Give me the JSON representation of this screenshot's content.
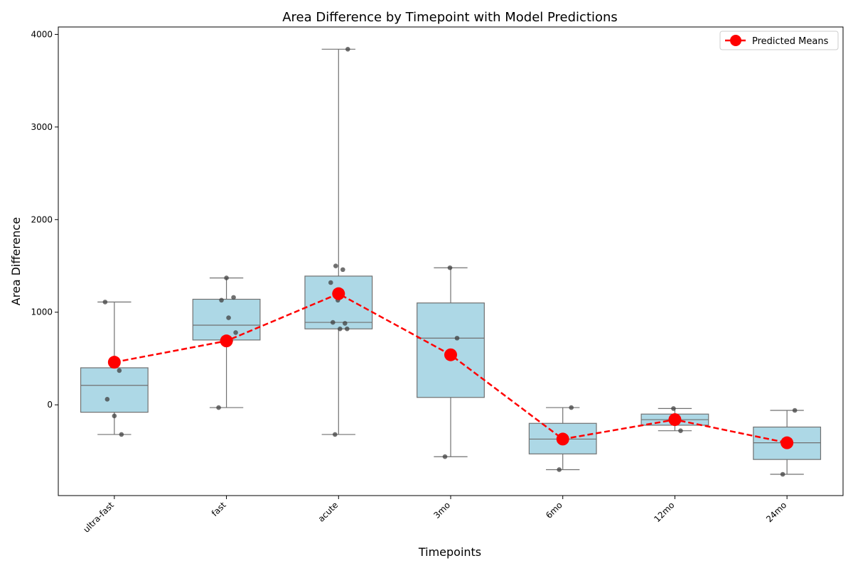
{
  "chart_data": {
    "type": "box",
    "title": "Area Difference by Timepoint with Model Predictions",
    "xlabel": "Timepoints",
    "ylabel": "Area Difference",
    "categories": [
      "ultra-fast",
      "fast",
      "acute",
      "3mo",
      "6mo",
      "12mo",
      "24mo"
    ],
    "ylim": [
      -980,
      4080
    ],
    "yticks": [
      0,
      1000,
      2000,
      3000,
      4000
    ],
    "grid": false,
    "legend_position": "top-right",
    "box_color": "#add8e6",
    "box_edge_color": "#707070",
    "point_color": "#404040",
    "boxes": [
      {
        "category": "ultra-fast",
        "whisker_low": -320,
        "q1": -80,
        "median": 210,
        "q3": 400,
        "whisker_high": 1110
      },
      {
        "category": "fast",
        "whisker_low": -30,
        "q1": 700,
        "median": 860,
        "q3": 1140,
        "whisker_high": 1370
      },
      {
        "category": "acute",
        "whisker_low": -320,
        "q1": 820,
        "median": 890,
        "q3": 1390,
        "whisker_high": 3840
      },
      {
        "category": "3mo",
        "whisker_low": -560,
        "q1": 80,
        "median": 720,
        "q3": 1100,
        "whisker_high": 1480
      },
      {
        "category": "6mo",
        "whisker_low": -700,
        "q1": -530,
        "median": -370,
        "q3": -200,
        "whisker_high": -30
      },
      {
        "category": "12mo",
        "whisker_low": -280,
        "q1": -220,
        "median": -160,
        "q3": -100,
        "whisker_high": -40
      },
      {
        "category": "24mo",
        "whisker_low": -750,
        "q1": -590,
        "median": -410,
        "q3": -240,
        "whisker_high": -60
      }
    ],
    "points": [
      {
        "category": "ultra-fast",
        "values": [
          1110,
          420,
          370,
          60,
          -120,
          -320
        ]
      },
      {
        "category": "fast",
        "values": [
          1370,
          1160,
          1130,
          940,
          780,
          710,
          690,
          -30
        ]
      },
      {
        "category": "acute",
        "values": [
          3840,
          1500,
          1460,
          1320,
          1130,
          880,
          890,
          820,
          820,
          -320
        ]
      },
      {
        "category": "3mo",
        "values": [
          1480,
          720,
          -560
        ]
      },
      {
        "category": "6mo",
        "values": [
          -30,
          -700
        ]
      },
      {
        "category": "12mo",
        "values": [
          -40,
          -280
        ]
      },
      {
        "category": "24mo",
        "values": [
          -60,
          -750
        ]
      }
    ],
    "series": [
      {
        "name": "Predicted Means",
        "color": "#ff0000",
        "style": "dashed",
        "values": [
          460,
          690,
          1200,
          540,
          -370,
          -160,
          -410
        ]
      }
    ]
  }
}
